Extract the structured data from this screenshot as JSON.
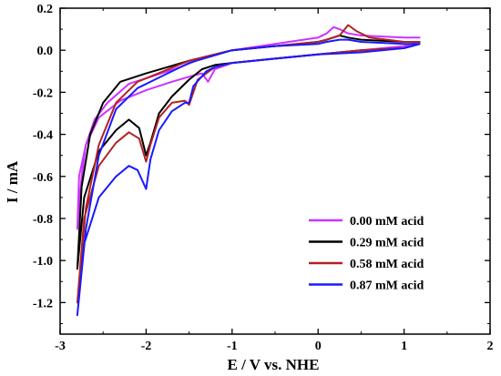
{
  "chart_data": {
    "type": "line",
    "xlabel": "E / V vs. NHE",
    "ylabel": "I / mA",
    "xlim": [
      -3,
      2
    ],
    "ylim": [
      -1.35,
      0.2
    ],
    "xticks": [
      -3,
      -2,
      -1,
      0,
      1,
      2
    ],
    "xtick_labels": [
      "-3",
      "-2",
      "-1",
      "0",
      "1",
      "2"
    ],
    "yticks": [
      0.2,
      0.0,
      -0.2,
      -0.4,
      -0.6,
      -0.8,
      -1.0,
      -1.2
    ],
    "ytick_labels": [
      "0.2",
      "0.0",
      "-0.2",
      "-0.4",
      "-0.6",
      "-0.8",
      "-1.0",
      "-1.2"
    ],
    "legend_position": "bottom-right",
    "series": [
      {
        "name": "0.00 mM acid",
        "color": "#cc33ff",
        "x": [
          1.18,
          1.0,
          0.5,
          0.35,
          0.25,
          0.18,
          0.1,
          0.0,
          -0.5,
          -1.0,
          -1.3,
          -1.6,
          -1.9,
          -2.2,
          -2.45,
          -2.6,
          -2.7,
          -2.75,
          -2.8,
          -2.78,
          -2.7,
          -2.55,
          -2.3,
          -2.0,
          -1.7,
          -1.45,
          -1.35,
          -1.28,
          -1.2,
          -1.0,
          -0.5,
          0.0,
          0.5,
          1.0,
          1.18
        ],
        "y": [
          0.06,
          0.06,
          0.07,
          0.08,
          0.1,
          0.11,
          0.08,
          0.06,
          0.03,
          0.0,
          -0.03,
          -0.08,
          -0.12,
          -0.16,
          -0.25,
          -0.33,
          -0.45,
          -0.6,
          -0.85,
          -0.6,
          -0.45,
          -0.32,
          -0.24,
          -0.19,
          -0.15,
          -0.12,
          -0.11,
          -0.15,
          -0.09,
          -0.06,
          -0.04,
          -0.02,
          0.0,
          0.02,
          0.04
        ]
      },
      {
        "name": "0.29 mM acid",
        "color": "#000000",
        "x": [
          1.18,
          1.0,
          0.5,
          0.35,
          0.25,
          0.1,
          0.0,
          -0.5,
          -1.0,
          -1.5,
          -1.75,
          -2.0,
          -2.3,
          -2.5,
          -2.65,
          -2.75,
          -2.8,
          -2.72,
          -2.55,
          -2.35,
          -2.2,
          -2.08,
          -2.0,
          -1.95,
          -1.85,
          -1.7,
          -1.5,
          -1.35,
          -1.2,
          -1.0,
          -0.5,
          0.0,
          0.5,
          1.0,
          1.18
        ],
        "y": [
          0.04,
          0.04,
          0.05,
          0.06,
          0.07,
          0.05,
          0.04,
          0.02,
          0.0,
          -0.05,
          -0.08,
          -0.11,
          -0.15,
          -0.25,
          -0.4,
          -0.65,
          -1.04,
          -0.7,
          -0.48,
          -0.38,
          -0.33,
          -0.37,
          -0.5,
          -0.44,
          -0.3,
          -0.22,
          -0.14,
          -0.09,
          -0.07,
          -0.06,
          -0.04,
          -0.02,
          0.0,
          0.01,
          0.03
        ]
      },
      {
        "name": "0.58 mM acid",
        "color": "#b22222",
        "x": [
          1.18,
          1.0,
          0.6,
          0.45,
          0.35,
          0.25,
          0.1,
          0.0,
          -0.5,
          -1.0,
          -1.5,
          -1.8,
          -2.1,
          -2.35,
          -2.55,
          -2.7,
          -2.8,
          -2.72,
          -2.55,
          -2.35,
          -2.2,
          -2.08,
          -2.0,
          -1.95,
          -1.85,
          -1.7,
          -1.55,
          -1.5,
          -1.4,
          -1.2,
          -1.0,
          -0.5,
          0.0,
          0.5,
          1.0,
          1.18
        ],
        "y": [
          0.04,
          0.04,
          0.06,
          0.09,
          0.12,
          0.07,
          0.05,
          0.04,
          0.02,
          0.0,
          -0.05,
          -0.1,
          -0.15,
          -0.25,
          -0.45,
          -0.75,
          -1.2,
          -0.8,
          -0.55,
          -0.44,
          -0.39,
          -0.42,
          -0.53,
          -0.45,
          -0.32,
          -0.25,
          -0.24,
          -0.26,
          -0.14,
          -0.08,
          -0.06,
          -0.04,
          -0.02,
          0.0,
          0.01,
          0.03
        ]
      },
      {
        "name": "0.87 mM acid",
        "color": "#1a1aff",
        "x": [
          1.18,
          1.0,
          0.5,
          0.35,
          0.25,
          0.1,
          0.0,
          -0.5,
          -1.0,
          -1.5,
          -1.8,
          -2.1,
          -2.35,
          -2.55,
          -2.7,
          -2.8,
          -2.72,
          -2.55,
          -2.35,
          -2.2,
          -2.1,
          -2.0,
          -1.95,
          -1.85,
          -1.7,
          -1.55,
          -1.5,
          -1.45,
          -1.3,
          -1.2,
          -1.0,
          -0.5,
          0.0,
          0.5,
          1.0,
          1.18
        ],
        "y": [
          0.03,
          0.03,
          0.04,
          0.05,
          0.05,
          0.04,
          0.03,
          0.02,
          0.0,
          -0.06,
          -0.12,
          -0.18,
          -0.28,
          -0.5,
          -0.85,
          -1.26,
          -0.92,
          -0.7,
          -0.6,
          -0.55,
          -0.57,
          -0.66,
          -0.52,
          -0.38,
          -0.29,
          -0.25,
          -0.25,
          -0.17,
          -0.1,
          -0.08,
          -0.06,
          -0.04,
          -0.02,
          -0.01,
          0.01,
          0.03
        ]
      }
    ]
  }
}
